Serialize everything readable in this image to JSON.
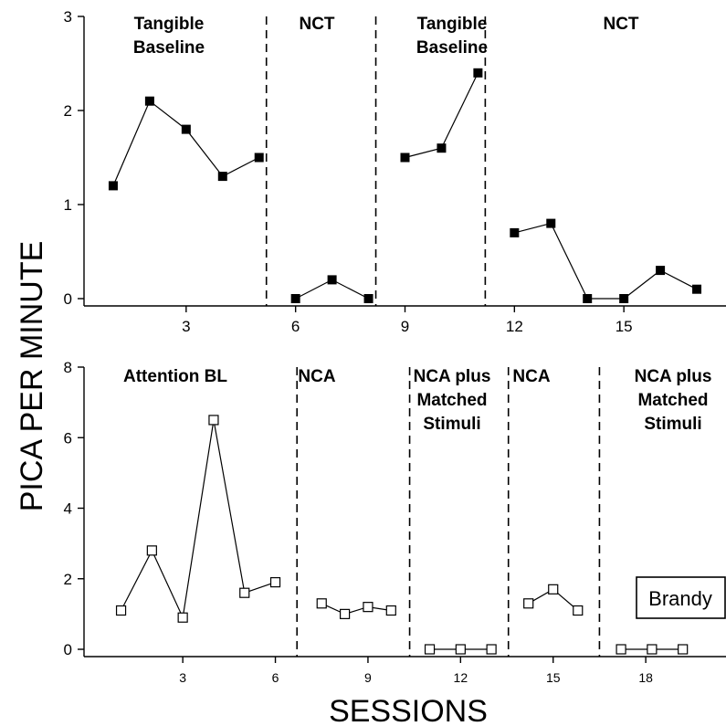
{
  "chart_data": [
    {
      "type": "line",
      "panel": "top",
      "ylim": [
        0,
        3
      ],
      "yticks": [
        "0",
        "1",
        "2",
        "3"
      ],
      "xlim": [
        0.2,
        17.8
      ],
      "xticks": [
        "3",
        "6",
        "9",
        "12",
        "15"
      ],
      "marker": "filled-square",
      "phase_labels": [
        "Tangible\nBaseline",
        "NCT",
        "Tangible\nBaseline",
        "NCT"
      ],
      "phase_lines_x": [
        5.2,
        8.2,
        11.2
      ],
      "series": [
        {
          "x": [
            1,
            2,
            3,
            4,
            5
          ],
          "y": [
            1.2,
            2.1,
            1.8,
            1.3,
            1.5
          ]
        },
        {
          "x": [
            6,
            7,
            8
          ],
          "y": [
            0.0,
            0.2,
            0.0
          ]
        },
        {
          "x": [
            9,
            10,
            11
          ],
          "y": [
            1.5,
            1.6,
            2.4
          ]
        },
        {
          "x": [
            12,
            13,
            14,
            15,
            16,
            17
          ],
          "y": [
            0.7,
            0.8,
            0.0,
            0.0,
            0.3,
            0.1
          ]
        }
      ]
    },
    {
      "type": "line",
      "panel": "bottom",
      "ylim": [
        0,
        8
      ],
      "yticks": [
        "0",
        "2",
        "4",
        "6",
        "8"
      ],
      "xlim": [
        -0.2,
        20.6
      ],
      "xticks": [
        "3",
        "6",
        "9",
        "12",
        "15",
        "18"
      ],
      "marker": "open-square",
      "phase_labels": [
        "Attention BL",
        "NCA",
        "NCA plus\nMatched\nStimuli",
        "NCA",
        "NCA plus\nMatched\nStimuli"
      ],
      "phase_lines_x": [
        6.7,
        10.35,
        13.55,
        16.5
      ],
      "legend": "Brandy",
      "series": [
        {
          "x": [
            1,
            2,
            3,
            4,
            5,
            6
          ],
          "y": [
            1.1,
            2.8,
            0.9,
            6.5,
            1.6,
            1.9
          ]
        },
        {
          "x": [
            7.5,
            8.25,
            9,
            9.75
          ],
          "y": [
            1.3,
            1.0,
            1.2,
            1.1
          ]
        },
        {
          "x": [
            11,
            12,
            13
          ],
          "y": [
            0,
            0,
            0
          ]
        },
        {
          "x": [
            14.2,
            15,
            15.8
          ],
          "y": [
            1.3,
            1.7,
            1.1
          ]
        },
        {
          "x": [
            17.2,
            18.2,
            19.2
          ],
          "y": [
            0,
            0,
            0
          ]
        }
      ]
    }
  ],
  "ylabel": "PICA PER MINUTE",
  "xlabel": "SESSIONS"
}
